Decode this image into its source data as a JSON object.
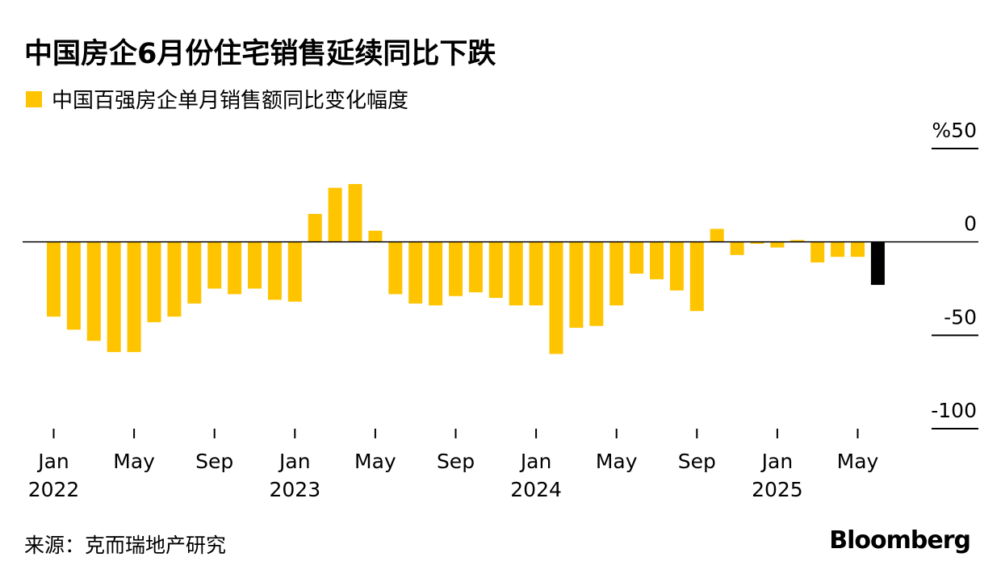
{
  "title": "中国房企6月份住宅销售延续同比下跌",
  "legend": {
    "label": "中国百强房企单月销售额同比变化幅度",
    "color": "#FFC400"
  },
  "source": "来源：克而瑞地产研究",
  "brand": "Bloomberg",
  "colors": {
    "bar": "#FFC400",
    "highlight": "#000000",
    "axis": "#000000"
  },
  "chart_data": {
    "type": "bar",
    "ylim": [
      -100,
      50
    ],
    "yticks": [
      "%50",
      "0",
      "-50",
      "-100"
    ],
    "ytick_values": [
      50,
      0,
      -50,
      -100
    ],
    "xtick_labels": [
      {
        "month": "Jan",
        "year": "2022",
        "index": 0
      },
      {
        "month": "May",
        "year": "",
        "index": 4
      },
      {
        "month": "Sep",
        "year": "",
        "index": 8
      },
      {
        "month": "Jan",
        "year": "2023",
        "index": 12
      },
      {
        "month": "May",
        "year": "",
        "index": 16
      },
      {
        "month": "Sep",
        "year": "",
        "index": 20
      },
      {
        "month": "Jan",
        "year": "2024",
        "index": 24
      },
      {
        "month": "May",
        "year": "",
        "index": 28
      },
      {
        "month": "Sep",
        "year": "",
        "index": 32
      },
      {
        "month": "Jan",
        "year": "2025",
        "index": 36
      },
      {
        "month": "May",
        "year": "",
        "index": 40
      }
    ],
    "categories": [
      "2022-01",
      "2022-02",
      "2022-03",
      "2022-04",
      "2022-05",
      "2022-06",
      "2022-07",
      "2022-08",
      "2022-09",
      "2022-10",
      "2022-11",
      "2022-12",
      "2023-01",
      "2023-02",
      "2023-03",
      "2023-04",
      "2023-05",
      "2023-06",
      "2023-07",
      "2023-08",
      "2023-09",
      "2023-10",
      "2023-11",
      "2023-12",
      "2024-01",
      "2024-02",
      "2024-03",
      "2024-04",
      "2024-05",
      "2024-06",
      "2024-07",
      "2024-08",
      "2024-09",
      "2024-10",
      "2024-11",
      "2024-12",
      "2025-01",
      "2025-02",
      "2025-03",
      "2025-04",
      "2025-05",
      "2025-06"
    ],
    "values": [
      -40,
      -47,
      -53,
      -59,
      -59,
      -43,
      -40,
      -33,
      -25,
      -28,
      -25,
      -31,
      -32,
      15,
      29,
      31,
      6,
      -28,
      -33,
      -34,
      -29,
      -27,
      -30,
      -34,
      -34,
      -60,
      -46,
      -45,
      -34,
      -17,
      -20,
      -26,
      -37,
      7,
      -7,
      -1,
      -3,
      1,
      -11,
      -8,
      -8,
      -23
    ],
    "highlight_index": 41
  }
}
